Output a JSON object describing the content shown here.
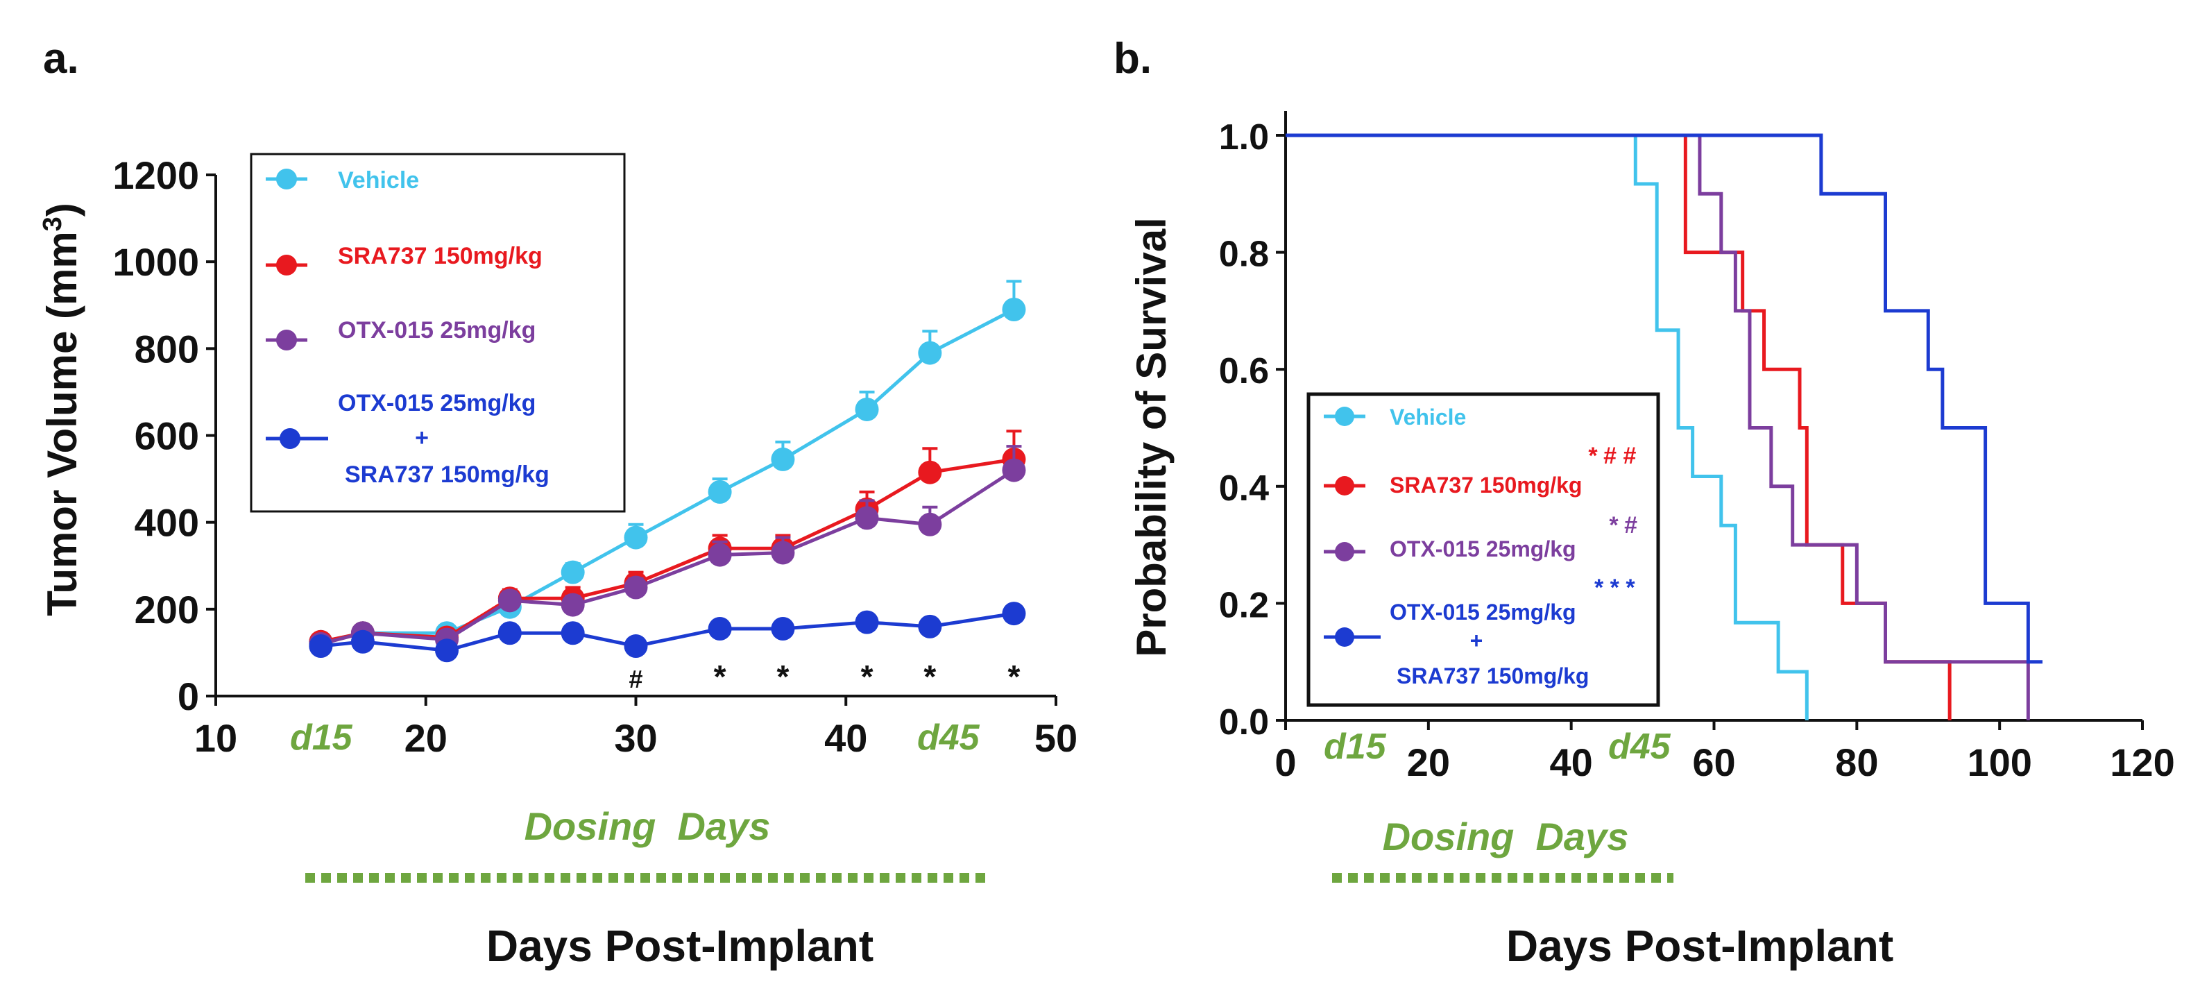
{
  "panel_a": {
    "label": "a."
  },
  "panel_b": {
    "label": "b."
  },
  "dosing": {
    "start_marker": "d15",
    "end_marker": "d45",
    "label": "Dosing  Days"
  },
  "colors": {
    "vehicle": "#41c3ec",
    "sra": "#e8191f",
    "otx": "#7c3e9e",
    "combo": "#1c3bd1",
    "dosing": "#6ea63f",
    "axis": "#111111"
  },
  "chart_data": [
    {
      "type": "line",
      "title": "a.",
      "xlabel": "Days Post-Implant",
      "ylabel": "Tumor Volume (mm³)",
      "ylabel_main": "Tumor Volume (mm",
      "ylabel_sup": "3",
      "ylabel_close": ")",
      "xlim": [
        10,
        50
      ],
      "ylim": [
        0,
        1200
      ],
      "xticks": [
        10,
        20,
        30,
        40,
        50
      ],
      "yticks": [
        0,
        200,
        400,
        600,
        800,
        1000,
        1200
      ],
      "dosing_range": [
        15,
        45
      ],
      "legend": [
        "Vehicle",
        "SRA737 150mg/kg",
        "OTX-015 25mg/kg",
        "OTX-015 25mg/kg",
        "+",
        "SRA737 150mg/kg"
      ],
      "series": [
        {
          "name": "Vehicle",
          "color": "#41c3ec",
          "points": [
            [
              15,
              125
            ],
            [
              17,
              145
            ],
            [
              21,
              145
            ],
            [
              24,
              205
            ],
            [
              27,
              285
            ],
            [
              30,
              365
            ],
            [
              34,
              470
            ],
            [
              37,
              545
            ],
            [
              41,
              660
            ],
            [
              44,
              790
            ],
            [
              48,
              890
            ]
          ],
          "err": [
            10,
            10,
            10,
            20,
            20,
            30,
            30,
            40,
            40,
            50,
            65
          ]
        },
        {
          "name": "SRA737 150mg/kg",
          "color": "#e8191f",
          "points": [
            [
              15,
              125
            ],
            [
              17,
              145
            ],
            [
              21,
              135
            ],
            [
              24,
              225
            ],
            [
              27,
              225
            ],
            [
              30,
              260
            ],
            [
              34,
              340
            ],
            [
              37,
              340
            ],
            [
              41,
              430
            ],
            [
              44,
              515
            ],
            [
              48,
              545
            ]
          ],
          "err": [
            10,
            10,
            10,
            20,
            25,
            25,
            30,
            30,
            40,
            55,
            65
          ]
        },
        {
          "name": "OTX-015 25mg/kg",
          "color": "#7c3e9e",
          "points": [
            [
              15,
              120
            ],
            [
              17,
              145
            ],
            [
              21,
              130
            ],
            [
              24,
              220
            ],
            [
              27,
              210
            ],
            [
              30,
              250
            ],
            [
              34,
              325
            ],
            [
              37,
              330
            ],
            [
              41,
              410
            ],
            [
              44,
              395
            ],
            [
              48,
              520
            ]
          ],
          "err": [
            10,
            10,
            10,
            20,
            20,
            20,
            30,
            35,
            40,
            40,
            55
          ]
        },
        {
          "name": "OTX-015 25mg/kg + SRA737 150mg/kg",
          "color": "#1c3bd1",
          "points": [
            [
              15,
              115
            ],
            [
              17,
              125
            ],
            [
              21,
              105
            ],
            [
              24,
              145
            ],
            [
              27,
              145
            ],
            [
              30,
              115
            ],
            [
              34,
              155
            ],
            [
              37,
              155
            ],
            [
              41,
              170
            ],
            [
              44,
              160
            ],
            [
              48,
              190
            ]
          ],
          "err": [
            10,
            10,
            10,
            10,
            10,
            10,
            10,
            10,
            10,
            10,
            10
          ]
        }
      ],
      "annotations": [
        {
          "x": 30,
          "text": "#"
        },
        {
          "x": 34,
          "text": "*"
        },
        {
          "x": 37,
          "text": "*"
        },
        {
          "x": 41,
          "text": "*"
        },
        {
          "x": 44,
          "text": "*"
        },
        {
          "x": 48,
          "text": "*"
        }
      ]
    },
    {
      "type": "line",
      "subtype": "kaplan-meier",
      "title": "b.",
      "xlabel": "Days Post-Implant",
      "ylabel": "Probability of Survival",
      "xlim": [
        0,
        120
      ],
      "ylim": [
        0,
        1.0
      ],
      "xticks": [
        0,
        20,
        40,
        60,
        80,
        100,
        120
      ],
      "yticks": [
        0.0,
        0.2,
        0.4,
        0.6,
        0.8,
        1.0
      ],
      "dosing_range": [
        15,
        45
      ],
      "legend": [
        "Vehicle",
        "SRA737 150mg/kg",
        "OTX-015 25mg/kg",
        "OTX-015 25mg/kg",
        "+",
        "SRA737 150mg/kg"
      ],
      "significance": [
        "* # #",
        "* #",
        "* * *"
      ],
      "series": [
        {
          "name": "Vehicle",
          "color": "#41c3ec",
          "steps": [
            [
              0,
              1.0
            ],
            [
              49,
              0.917
            ],
            [
              52,
              0.667
            ],
            [
              55,
              0.5
            ],
            [
              57,
              0.417
            ],
            [
              61,
              0.333
            ],
            [
              63,
              0.167
            ],
            [
              69,
              0.083
            ],
            [
              73,
              0.0
            ]
          ]
        },
        {
          "name": "SRA737 150mg/kg",
          "color": "#e8191f",
          "steps": [
            [
              0,
              1.0
            ],
            [
              56,
              0.8
            ],
            [
              64,
              0.7
            ],
            [
              67,
              0.6
            ],
            [
              72,
              0.5
            ],
            [
              73,
              0.3
            ],
            [
              78,
              0.2
            ],
            [
              84,
              0.1
            ],
            [
              93,
              0.0
            ]
          ]
        },
        {
          "name": "OTX-015 25mg/kg",
          "color": "#7c3e9e",
          "steps": [
            [
              0,
              1.0
            ],
            [
              58,
              0.9
            ],
            [
              61,
              0.8
            ],
            [
              63,
              0.7
            ],
            [
              65,
              0.5
            ],
            [
              68,
              0.4
            ],
            [
              71,
              0.3
            ],
            [
              80,
              0.2
            ],
            [
              84,
              0.1
            ],
            [
              104,
              0.0
            ]
          ]
        },
        {
          "name": "OTX-015 25mg/kg + SRA737 150mg/kg",
          "color": "#1c3bd1",
          "steps": [
            [
              0,
              1.0
            ],
            [
              75,
              0.9
            ],
            [
              84,
              0.7
            ],
            [
              90,
              0.6
            ],
            [
              92,
              0.5
            ],
            [
              98,
              0.2
            ],
            [
              104,
              0.1
            ],
            [
              106,
              0.1
            ]
          ]
        }
      ]
    }
  ]
}
